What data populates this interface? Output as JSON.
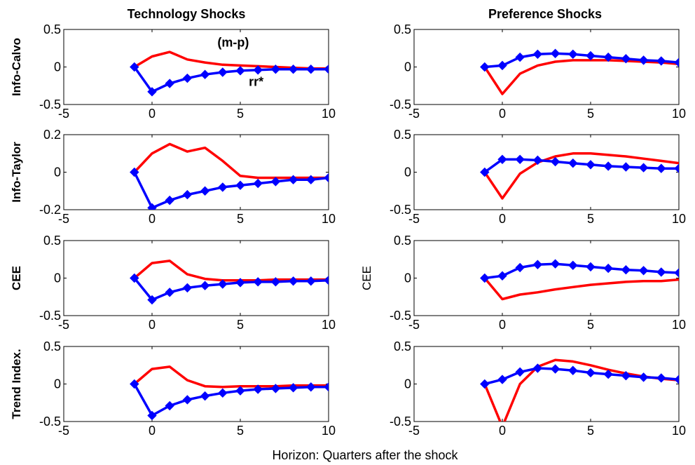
{
  "figure": {
    "column_titles": [
      "Technology Shocks",
      "Preference Shocks"
    ],
    "xlabel": "Horizon: Quarters after the shock",
    "colors": {
      "mp": "#ff0000",
      "rr": "#0000ff"
    }
  },
  "chart_data": [
    {
      "type": "line",
      "row": 0,
      "col": 0,
      "ylabel": "Info-Calvo",
      "xlim": [
        -5,
        10
      ],
      "ylim": [
        -0.5,
        0.5
      ],
      "xticks": [
        -5,
        0,
        5,
        10
      ],
      "yticks": [
        -0.5,
        0,
        0.5
      ],
      "annotations": [
        {
          "text": "(m-p)",
          "x": 4.6,
          "y": 0.27
        },
        {
          "text": "rr*",
          "x": 5.9,
          "y": -0.25
        }
      ],
      "series": [
        {
          "key": "mp",
          "marker": false,
          "x": [
            -1,
            0,
            1,
            2,
            3,
            4,
            5,
            6,
            7,
            8,
            9,
            10
          ],
          "values": [
            0,
            0.14,
            0.2,
            0.1,
            0.06,
            0.03,
            0.02,
            0.01,
            0,
            -0.01,
            -0.02,
            -0.02
          ]
        },
        {
          "key": "rr",
          "marker": true,
          "x": [
            -1,
            0,
            1,
            2,
            3,
            4,
            5,
            6,
            7,
            8,
            9,
            10
          ],
          "values": [
            0,
            -0.33,
            -0.22,
            -0.15,
            -0.1,
            -0.07,
            -0.05,
            -0.04,
            -0.03,
            -0.03,
            -0.03,
            -0.03
          ]
        }
      ]
    },
    {
      "type": "line",
      "row": 0,
      "col": 1,
      "ylabel": "",
      "xlim": [
        -5,
        10
      ],
      "ylim": [
        -0.5,
        0.5
      ],
      "xticks": [
        -5,
        0,
        5,
        10
      ],
      "yticks": [
        -0.5,
        0,
        0.5
      ],
      "annotations": [],
      "series": [
        {
          "key": "mp",
          "marker": false,
          "x": [
            -1,
            0,
            1,
            2,
            3,
            4,
            5,
            6,
            7,
            8,
            9,
            10
          ],
          "values": [
            0,
            -0.36,
            -0.09,
            0.02,
            0.07,
            0.09,
            0.09,
            0.09,
            0.08,
            0.07,
            0.06,
            0.04
          ]
        },
        {
          "key": "rr",
          "marker": true,
          "x": [
            -1,
            0,
            1,
            2,
            3,
            4,
            5,
            6,
            7,
            8,
            9,
            10
          ],
          "values": [
            0,
            0.02,
            0.13,
            0.17,
            0.18,
            0.17,
            0.15,
            0.13,
            0.11,
            0.09,
            0.08,
            0.06
          ]
        }
      ]
    },
    {
      "type": "line",
      "row": 1,
      "col": 0,
      "ylabel": "Info-Taylor",
      "xlim": [
        -5,
        10
      ],
      "ylim": [
        -0.2,
        0.2
      ],
      "xticks": [
        -5,
        0,
        5,
        10
      ],
      "yticks": [
        -0.2,
        0,
        0.2
      ],
      "annotations": [],
      "series": [
        {
          "key": "mp",
          "marker": false,
          "x": [
            -1,
            0,
            1,
            2,
            3,
            4,
            5,
            6,
            7,
            8,
            9,
            10
          ],
          "values": [
            0,
            0.1,
            0.15,
            0.11,
            0.13,
            0.06,
            -0.02,
            -0.03,
            -0.03,
            -0.03,
            -0.03,
            -0.03
          ]
        },
        {
          "key": "rr",
          "marker": true,
          "x": [
            -1,
            0,
            1,
            2,
            3,
            4,
            5,
            6,
            7,
            8,
            9,
            10
          ],
          "values": [
            0,
            -0.19,
            -0.15,
            -0.12,
            -0.1,
            -0.08,
            -0.07,
            -0.06,
            -0.05,
            -0.04,
            -0.04,
            -0.03
          ]
        }
      ]
    },
    {
      "type": "line",
      "row": 1,
      "col": 1,
      "ylabel": "",
      "xlim": [
        -5,
        10
      ],
      "ylim": [
        -0.5,
        0.5
      ],
      "xticks": [
        -5,
        0,
        5,
        10
      ],
      "yticks": [
        -0.5,
        0,
        0.5
      ],
      "annotations": [],
      "series": [
        {
          "key": "mp",
          "marker": false,
          "x": [
            -1,
            0,
            1,
            2,
            3,
            4,
            5,
            6,
            7,
            8,
            9,
            10
          ],
          "values": [
            0,
            -0.35,
            -0.02,
            0.13,
            0.21,
            0.25,
            0.25,
            0.23,
            0.21,
            0.18,
            0.15,
            0.12
          ]
        },
        {
          "key": "rr",
          "marker": true,
          "x": [
            -1,
            0,
            1,
            2,
            3,
            4,
            5,
            6,
            7,
            8,
            9,
            10
          ],
          "values": [
            0,
            0.17,
            0.17,
            0.16,
            0.14,
            0.12,
            0.1,
            0.08,
            0.07,
            0.06,
            0.05,
            0.05
          ]
        }
      ]
    },
    {
      "type": "line",
      "row": 2,
      "col": 0,
      "ylabel": "CEE",
      "xlim": [
        -5,
        10
      ],
      "ylim": [
        -0.5,
        0.5
      ],
      "xticks": [
        -5,
        0,
        5,
        10
      ],
      "yticks": [
        -0.5,
        0,
        0.5
      ],
      "annotations": [],
      "series": [
        {
          "key": "mp",
          "marker": false,
          "x": [
            -1,
            0,
            1,
            2,
            3,
            4,
            5,
            6,
            7,
            8,
            9,
            10
          ],
          "values": [
            0,
            0.2,
            0.23,
            0.05,
            -0.01,
            -0.03,
            -0.03,
            -0.03,
            -0.02,
            -0.02,
            -0.02,
            -0.02
          ]
        },
        {
          "key": "rr",
          "marker": true,
          "x": [
            -1,
            0,
            1,
            2,
            3,
            4,
            5,
            6,
            7,
            8,
            9,
            10
          ],
          "values": [
            0,
            -0.29,
            -0.19,
            -0.13,
            -0.1,
            -0.08,
            -0.06,
            -0.05,
            -0.05,
            -0.04,
            -0.04,
            -0.03
          ]
        }
      ]
    },
    {
      "type": "line",
      "row": 2,
      "col": 1,
      "ylabel": "CEE",
      "xlim": [
        -5,
        10
      ],
      "ylim": [
        -0.5,
        0.5
      ],
      "xticks": [
        -5,
        0,
        5,
        10
      ],
      "yticks": [
        -0.5,
        0,
        0.5
      ],
      "annotations": [],
      "series": [
        {
          "key": "mp",
          "marker": false,
          "x": [
            -1,
            0,
            1,
            2,
            3,
            4,
            5,
            6,
            7,
            8,
            9,
            10
          ],
          "values": [
            0,
            -0.28,
            -0.22,
            -0.19,
            -0.15,
            -0.12,
            -0.09,
            -0.07,
            -0.05,
            -0.04,
            -0.04,
            -0.02
          ]
        },
        {
          "key": "rr",
          "marker": true,
          "x": [
            -1,
            0,
            1,
            2,
            3,
            4,
            5,
            6,
            7,
            8,
            9,
            10
          ],
          "values": [
            0,
            0.03,
            0.14,
            0.18,
            0.19,
            0.17,
            0.15,
            0.13,
            0.11,
            0.1,
            0.08,
            0.07
          ]
        }
      ]
    },
    {
      "type": "line",
      "row": 3,
      "col": 0,
      "ylabel": "Trend Index.",
      "xlim": [
        -5,
        10
      ],
      "ylim": [
        -0.5,
        0.5
      ],
      "xticks": [
        -5,
        0,
        5,
        10
      ],
      "yticks": [
        -0.5,
        0,
        0.5
      ],
      "annotations": [],
      "series": [
        {
          "key": "mp",
          "marker": false,
          "x": [
            -1,
            0,
            1,
            2,
            3,
            4,
            5,
            6,
            7,
            8,
            9,
            10
          ],
          "values": [
            0,
            0.2,
            0.23,
            0.05,
            -0.03,
            -0.04,
            -0.03,
            -0.03,
            -0.03,
            -0.02,
            -0.02,
            -0.02
          ]
        },
        {
          "key": "rr",
          "marker": true,
          "x": [
            -1,
            0,
            1,
            2,
            3,
            4,
            5,
            6,
            7,
            8,
            9,
            10
          ],
          "values": [
            0,
            -0.42,
            -0.29,
            -0.21,
            -0.16,
            -0.12,
            -0.09,
            -0.07,
            -0.06,
            -0.05,
            -0.04,
            -0.04
          ]
        }
      ]
    },
    {
      "type": "line",
      "row": 3,
      "col": 1,
      "ylabel": "",
      "xlim": [
        -5,
        10
      ],
      "ylim": [
        -0.5,
        0.5
      ],
      "xticks": [
        -5,
        0,
        5,
        10
      ],
      "yticks": [
        -0.5,
        0,
        0.5
      ],
      "annotations": [],
      "series": [
        {
          "key": "mp",
          "marker": false,
          "x": [
            -1,
            0,
            1,
            2,
            3,
            4,
            5,
            6,
            7,
            8,
            9,
            10
          ],
          "values": [
            0,
            -0.57,
            0,
            0.23,
            0.32,
            0.3,
            0.25,
            0.19,
            0.14,
            0.1,
            0.07,
            0.05
          ]
        },
        {
          "key": "rr",
          "marker": true,
          "x": [
            -1,
            0,
            1,
            2,
            3,
            4,
            5,
            6,
            7,
            8,
            9,
            10
          ],
          "values": [
            0,
            0.06,
            0.16,
            0.21,
            0.2,
            0.18,
            0.15,
            0.13,
            0.11,
            0.09,
            0.08,
            0.06
          ]
        }
      ]
    }
  ]
}
